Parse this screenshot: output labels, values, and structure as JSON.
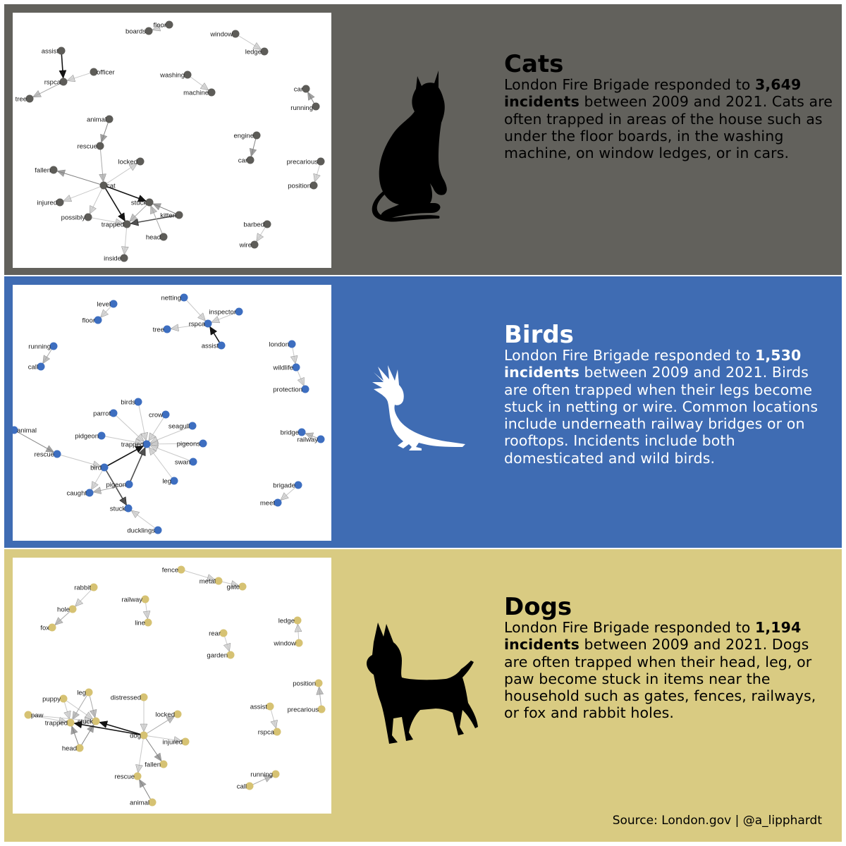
{
  "panels": [
    {
      "key": "cats",
      "title": "Cats",
      "colors": {
        "band": "#62615c",
        "node": "#5d5c58",
        "text": "#000000"
      },
      "desc_before": "London Fire Brigade responded to ",
      "count": "3,649 incidents",
      "desc_after": " between 2009 and 2021. Cats are often trapped in areas of the house such as under the floor boards, in the washing machine, on window ledges, or in cars.",
      "icon": "cat-silhouette-icon",
      "network": {
        "nodes": [
          {
            "id": "floor",
            "l": "floor"
          },
          {
            "id": "boards",
            "l": "boards"
          },
          {
            "id": "window",
            "l": "window"
          },
          {
            "id": "ledge",
            "l": "ledge"
          },
          {
            "id": "assist",
            "l": "assist"
          },
          {
            "id": "rspca",
            "l": "rspca"
          },
          {
            "id": "officer",
            "l": "officer"
          },
          {
            "id": "tree",
            "l": "tree"
          },
          {
            "id": "washing",
            "l": "washing"
          },
          {
            "id": "machine",
            "l": "machine"
          },
          {
            "id": "car",
            "l": "car"
          },
          {
            "id": "running",
            "l": "running"
          },
          {
            "id": "animal",
            "l": "animal"
          },
          {
            "id": "rescue",
            "l": "rescue"
          },
          {
            "id": "locked",
            "l": "locked"
          },
          {
            "id": "fallen",
            "l": "fallen"
          },
          {
            "id": "cat",
            "l": "cat"
          },
          {
            "id": "injured",
            "l": "injured"
          },
          {
            "id": "stuck",
            "l": "stuck"
          },
          {
            "id": "kitten",
            "l": "kitten"
          },
          {
            "id": "possibly",
            "l": "possibly"
          },
          {
            "id": "trapped",
            "l": "trapped"
          },
          {
            "id": "head",
            "l": "head"
          },
          {
            "id": "inside",
            "l": "inside"
          },
          {
            "id": "engine",
            "l": "engine"
          },
          {
            "id": "car2",
            "l": "car"
          },
          {
            "id": "precarious",
            "l": "precarious"
          },
          {
            "id": "position",
            "l": "position"
          },
          {
            "id": "barbed",
            "l": "barbed"
          },
          {
            "id": "wire",
            "l": "wire"
          }
        ],
        "edges": [
          [
            "floor",
            "boards",
            1
          ],
          [
            "window",
            "ledge",
            1
          ],
          [
            "assist",
            "rspca",
            5
          ],
          [
            "officer",
            "rspca",
            1
          ],
          [
            "rspca",
            "tree",
            2
          ],
          [
            "washing",
            "machine",
            1
          ],
          [
            "running",
            "car",
            3
          ],
          [
            "animal",
            "rescue",
            3
          ],
          [
            "rescue",
            "cat",
            2
          ],
          [
            "cat",
            "fallen",
            3
          ],
          [
            "cat",
            "locked",
            1
          ],
          [
            "cat",
            "injured",
            1
          ],
          [
            "cat",
            "stuck",
            5
          ],
          [
            "cat",
            "trapped",
            5
          ],
          [
            "cat",
            "possibly",
            1
          ],
          [
            "kitten",
            "stuck",
            3
          ],
          [
            "kitten",
            "trapped",
            4
          ],
          [
            "possibly",
            "trapped",
            1
          ],
          [
            "stuck",
            "trapped",
            2
          ],
          [
            "head",
            "stuck",
            2
          ],
          [
            "trapped",
            "inside",
            1
          ],
          [
            "engine",
            "car2",
            3
          ],
          [
            "precarious",
            "position",
            1
          ],
          [
            "barbed",
            "wire",
            1
          ]
        ]
      }
    },
    {
      "key": "birds",
      "title": "Birds",
      "colors": {
        "band": "#3f6cb3",
        "node": "#3d6ec0",
        "text": "#ffffff"
      },
      "desc_before": "London Fire Brigade responded to ",
      "count": "1,530 incidents",
      "desc_after": " between 2009 and 2021. Birds are often trapped when their legs become stuck in netting or wire. Common locations include underneath railway bridges or on rooftops. Incidents include both domesticated and wild birds.",
      "icon": "cockatoo-silhouette-icon",
      "network": {
        "nodes": [
          {
            "id": "level",
            "l": "level"
          },
          {
            "id": "floor",
            "l": "floor"
          },
          {
            "id": "netting",
            "l": "netting"
          },
          {
            "id": "inspector",
            "l": "inspector"
          },
          {
            "id": "rspca",
            "l": "rspca"
          },
          {
            "id": "tree",
            "l": "tree"
          },
          {
            "id": "assist",
            "l": "assist"
          },
          {
            "id": "running",
            "l": "running"
          },
          {
            "id": "call",
            "l": "call"
          },
          {
            "id": "london",
            "l": "london"
          },
          {
            "id": "wildlife",
            "l": "wildlife"
          },
          {
            "id": "protection",
            "l": "protection"
          },
          {
            "id": "birds",
            "l": "birds"
          },
          {
            "id": "parrot",
            "l": "parrot"
          },
          {
            "id": "crow",
            "l": "crow"
          },
          {
            "id": "seagull",
            "l": "seagull"
          },
          {
            "id": "pidgeon",
            "l": "pidgeon"
          },
          {
            "id": "trapped",
            "l": "trapped"
          },
          {
            "id": "pigeons",
            "l": "pigeons"
          },
          {
            "id": "animal",
            "l": "animal"
          },
          {
            "id": "rescue",
            "l": "rescue"
          },
          {
            "id": "swan",
            "l": "swan"
          },
          {
            "id": "bird",
            "l": "bird"
          },
          {
            "id": "leg",
            "l": "leg"
          },
          {
            "id": "pigeon",
            "l": "pigeon"
          },
          {
            "id": "caught",
            "l": "caught"
          },
          {
            "id": "stuck",
            "l": "stuck"
          },
          {
            "id": "ducklings",
            "l": "ducklings"
          },
          {
            "id": "bridge",
            "l": "bridge"
          },
          {
            "id": "railway",
            "l": "railway"
          },
          {
            "id": "brigade",
            "l": "brigade"
          },
          {
            "id": "meet",
            "l": "meet"
          }
        ],
        "edges": [
          [
            "level",
            "floor",
            1
          ],
          [
            "netting",
            "rspca",
            1
          ],
          [
            "inspector",
            "rspca",
            1
          ],
          [
            "rspca",
            "tree",
            1
          ],
          [
            "assist",
            "rspca",
            5
          ],
          [
            "running",
            "call",
            2
          ],
          [
            "london",
            "wildlife",
            1
          ],
          [
            "wildlife",
            "protection",
            1
          ],
          [
            "birds",
            "trapped",
            1
          ],
          [
            "parrot",
            "trapped",
            1
          ],
          [
            "crow",
            "trapped",
            1
          ],
          [
            "seagull",
            "trapped",
            1
          ],
          [
            "pidgeon",
            "trapped",
            1
          ],
          [
            "pigeons",
            "trapped",
            1
          ],
          [
            "swan",
            "trapped",
            1
          ],
          [
            "leg",
            "trapped",
            1
          ],
          [
            "bird",
            "trapped",
            5
          ],
          [
            "pigeon",
            "trapped",
            4
          ],
          [
            "animal",
            "rescue",
            3
          ],
          [
            "rescue",
            "bird",
            1
          ],
          [
            "bird",
            "caught",
            1
          ],
          [
            "bird",
            "stuck",
            4
          ],
          [
            "pigeon",
            "caught",
            2
          ],
          [
            "ducklings",
            "stuck",
            1
          ],
          [
            "railway",
            "bridge",
            2
          ],
          [
            "brigade",
            "meet",
            1
          ]
        ]
      }
    },
    {
      "key": "dogs",
      "title": "Dogs",
      "colors": {
        "band": "#d9cb82",
        "node": "#d6c273",
        "text": "#000000"
      },
      "desc_before": "London Fire Brigade responded to ",
      "count": "1,194 incidents",
      "desc_after": " between 2009 and 2021. Dogs are often trapped when their head, leg, or paw become stuck in items near the household such as gates, fences, railways, or fox and rabbit holes.",
      "icon": "bull-terrier-silhouette-icon",
      "network": {
        "nodes": [
          {
            "id": "fence",
            "l": "fence"
          },
          {
            "id": "metal",
            "l": "metal"
          },
          {
            "id": "gate",
            "l": "gate"
          },
          {
            "id": "rabbit",
            "l": "rabbit"
          },
          {
            "id": "hole",
            "l": "hole"
          },
          {
            "id": "fox",
            "l": "fox"
          },
          {
            "id": "railway",
            "l": "railway"
          },
          {
            "id": "line",
            "l": "line"
          },
          {
            "id": "rear",
            "l": "rear"
          },
          {
            "id": "garden",
            "l": "garden"
          },
          {
            "id": "ledge",
            "l": "ledge"
          },
          {
            "id": "window",
            "l": "window"
          },
          {
            "id": "puppy",
            "l": "puppy"
          },
          {
            "id": "leg",
            "l": "leg"
          },
          {
            "id": "distressed",
            "l": "distressed"
          },
          {
            "id": "paw",
            "l": "paw"
          },
          {
            "id": "trapped",
            "l": "trapped"
          },
          {
            "id": "stuck",
            "l": "stuck"
          },
          {
            "id": "locked",
            "l": "locked"
          },
          {
            "id": "dog",
            "l": "dog"
          },
          {
            "id": "head",
            "l": "head"
          },
          {
            "id": "injured",
            "l": "injured"
          },
          {
            "id": "fallen",
            "l": "fallen"
          },
          {
            "id": "rescue",
            "l": "rescue"
          },
          {
            "id": "animal",
            "l": "animal"
          },
          {
            "id": "position",
            "l": "position"
          },
          {
            "id": "precarious",
            "l": "precarious"
          },
          {
            "id": "assist",
            "l": "assist"
          },
          {
            "id": "rspca",
            "l": "rspca"
          },
          {
            "id": "running",
            "l": "running"
          },
          {
            "id": "call",
            "l": "call"
          }
        ],
        "edges": [
          [
            "fence",
            "metal",
            1
          ],
          [
            "metal",
            "gate",
            1
          ],
          [
            "rabbit",
            "hole",
            1
          ],
          [
            "hole",
            "fox",
            2
          ],
          [
            "railway",
            "line",
            1
          ],
          [
            "rear",
            "garden",
            1
          ],
          [
            "window",
            "ledge",
            1
          ],
          [
            "puppy",
            "trapped",
            1
          ],
          [
            "puppy",
            "stuck",
            1
          ],
          [
            "leg",
            "trapped",
            2
          ],
          [
            "leg",
            "stuck",
            2
          ],
          [
            "paw",
            "trapped",
            1
          ],
          [
            "paw",
            "stuck",
            1
          ],
          [
            "head",
            "trapped",
            3
          ],
          [
            "head",
            "stuck",
            3
          ],
          [
            "distressed",
            "dog",
            1
          ],
          [
            "dog",
            "locked",
            2
          ],
          [
            "dog",
            "stuck",
            5
          ],
          [
            "dog",
            "trapped",
            5
          ],
          [
            "dog",
            "injured",
            1
          ],
          [
            "dog",
            "fallen",
            3
          ],
          [
            "dog",
            "rescue",
            1
          ],
          [
            "animal",
            "rescue",
            3
          ],
          [
            "precarious",
            "position",
            2
          ],
          [
            "assist",
            "rspca",
            1
          ],
          [
            "call",
            "running",
            2
          ]
        ]
      }
    }
  ],
  "source": "Source: London.gov | @a_lipphardt"
}
